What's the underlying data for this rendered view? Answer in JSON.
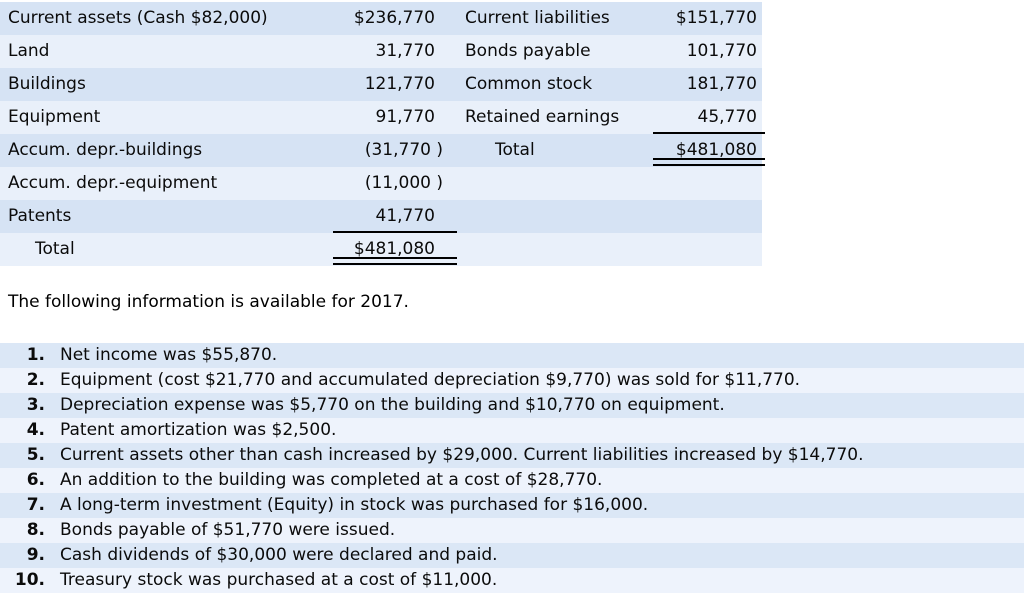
{
  "balance_sheet": {
    "rows": [
      {
        "left_label": "Current assets (Cash $82,000)",
        "left_value": "$236,770",
        "right_label": "Current liabilities",
        "right_value": "$151,770"
      },
      {
        "left_label": "Land",
        "left_value": "31,770",
        "right_label": "Bonds payable",
        "right_value": "101,770"
      },
      {
        "left_label": "Buildings",
        "left_value": "121,770",
        "right_label": "Common stock",
        "right_value": "181,770"
      },
      {
        "left_label": "Equipment",
        "left_value": "91,770",
        "right_label": "Retained earnings",
        "right_value": "45,770"
      },
      {
        "left_label": "Accum. depr.-buildings",
        "left_value": "(31,770 )",
        "right_label": "Total",
        "right_value": "$481,080"
      },
      {
        "left_label": "Accum. depr.-equipment",
        "left_value": "(11,000 )",
        "right_label": "",
        "right_value": ""
      },
      {
        "left_label": "Patents",
        "left_value": "41,770",
        "right_label": "",
        "right_value": ""
      },
      {
        "left_label": "Total",
        "left_value": "$481,080",
        "right_label": "",
        "right_value": ""
      }
    ]
  },
  "heading": {
    "text": "The following information is available for 2017."
  },
  "info_list": {
    "items": [
      {
        "num": "1.",
        "text": "Net income was $55,870."
      },
      {
        "num": "2.",
        "text": "Equipment (cost $21,770 and accumulated depreciation $9,770) was sold for $11,770."
      },
      {
        "num": "3.",
        "text": "Depreciation expense was $5,770 on the building and $10,770 on equipment."
      },
      {
        "num": "4.",
        "text": "Patent amortization was $2,500."
      },
      {
        "num": "5.",
        "text": "Current assets other than cash increased by $29,000. Current liabilities increased by $14,770."
      },
      {
        "num": "6.",
        "text": "An addition to the building was completed at a cost of $28,770."
      },
      {
        "num": "7.",
        "text": "A long-term investment (Equity) in stock was purchased for $16,000."
      },
      {
        "num": "8.",
        "text": "Bonds payable of $51,770 were issued."
      },
      {
        "num": "9.",
        "text": "Cash dividends of $30,000 were declared and paid."
      },
      {
        "num": "10.",
        "text": "Treasury stock was purchased at a cost of $11,000."
      }
    ]
  },
  "colors": {
    "table_row_dark": "#d6e3f4",
    "table_row_light": "#e9f0fa",
    "list_row_dark": "#dbe7f6",
    "list_row_light": "#eef3fc"
  }
}
